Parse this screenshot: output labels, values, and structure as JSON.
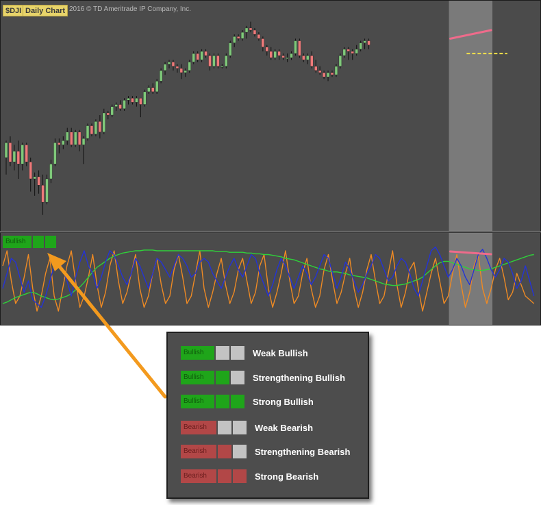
{
  "header": {
    "symbol": "$DJI",
    "chart_type": "Daily Chart",
    "copyright": "2016 © TD Ameritrade IP Company, Inc."
  },
  "indicator": {
    "state_label": "Bullish",
    "blocks_filled": 3
  },
  "legend": {
    "items": [
      {
        "tag": "Bullish",
        "filled": 1,
        "kind": "bull",
        "text": "Weak Bullish"
      },
      {
        "tag": "Bullish",
        "filled": 2,
        "kind": "bull",
        "text": "Strengthening Bullish"
      },
      {
        "tag": "Bullish",
        "filled": 3,
        "kind": "bull",
        "text": "Strong Bullish"
      },
      {
        "tag": "Bearish",
        "filled": 1,
        "kind": "bear",
        "text": "Weak Bearish"
      },
      {
        "tag": "Bearish",
        "filled": 2,
        "kind": "bear",
        "text": "Strengthening Bearish"
      },
      {
        "tag": "Bearish",
        "filled": 3,
        "kind": "bear",
        "text": "Strong Bearish"
      }
    ]
  },
  "colors": {
    "panel_bg": "#4b4b4b",
    "up_candle": "#7fc97a",
    "down_candle": "#ee7a7a",
    "wick": "#111111",
    "bull": "#1fa51a",
    "bear": "#b24747",
    "inactive": "#c3c3c3",
    "highlight": "#8a8a8a",
    "divergence_line": "#ef6b8b",
    "support_line": "#f2e14a",
    "line_blue": "#2433d6",
    "line_orange": "#ee8a24",
    "line_green": "#2fd13a",
    "arrow": "#f39a1e"
  },
  "chart_data": [
    {
      "type": "candlestick",
      "title": "$DJI Daily Chart",
      "ylim": [
        0,
        100
      ],
      "highlight_range": [
        109,
        119
      ],
      "divergence_line": [
        [
          109,
          86
        ],
        [
          119,
          90
        ]
      ],
      "support_line": [
        [
          113,
          79
        ],
        [
          123,
          79
        ]
      ],
      "candles": [
        {
          "o": 30,
          "h": 38,
          "l": 22,
          "c": 37
        },
        {
          "o": 37,
          "h": 40,
          "l": 26,
          "c": 28
        },
        {
          "o": 28,
          "h": 36,
          "l": 24,
          "c": 33
        },
        {
          "o": 33,
          "h": 38,
          "l": 20,
          "c": 27
        },
        {
          "o": 27,
          "h": 37,
          "l": 24,
          "c": 36
        },
        {
          "o": 36,
          "h": 37,
          "l": 26,
          "c": 28
        },
        {
          "o": 28,
          "h": 30,
          "l": 14,
          "c": 20
        },
        {
          "o": 20,
          "h": 23,
          "l": 12,
          "c": 21
        },
        {
          "o": 21,
          "h": 24,
          "l": 13,
          "c": 17
        },
        {
          "o": 17,
          "h": 22,
          "l": 3,
          "c": 9
        },
        {
          "o": 9,
          "h": 22,
          "l": 8,
          "c": 20
        },
        {
          "o": 20,
          "h": 29,
          "l": 18,
          "c": 27
        },
        {
          "o": 27,
          "h": 39,
          "l": 26,
          "c": 37
        },
        {
          "o": 37,
          "h": 39,
          "l": 32,
          "c": 36
        },
        {
          "o": 36,
          "h": 40,
          "l": 34,
          "c": 38
        },
        {
          "o": 38,
          "h": 44,
          "l": 36,
          "c": 42
        },
        {
          "o": 42,
          "h": 44,
          "l": 35,
          "c": 36
        },
        {
          "o": 36,
          "h": 43,
          "l": 35,
          "c": 42
        },
        {
          "o": 42,
          "h": 43,
          "l": 33,
          "c": 36
        },
        {
          "o": 36,
          "h": 40,
          "l": 27,
          "c": 39
        },
        {
          "o": 39,
          "h": 46,
          "l": 38,
          "c": 45
        },
        {
          "o": 45,
          "h": 46,
          "l": 40,
          "c": 41
        },
        {
          "o": 41,
          "h": 48,
          "l": 40,
          "c": 47
        },
        {
          "o": 47,
          "h": 50,
          "l": 39,
          "c": 42
        },
        {
          "o": 42,
          "h": 53,
          "l": 41,
          "c": 51
        },
        {
          "o": 51,
          "h": 52,
          "l": 48,
          "c": 50
        },
        {
          "o": 50,
          "h": 55,
          "l": 49,
          "c": 54
        },
        {
          "o": 54,
          "h": 56,
          "l": 52,
          "c": 55
        },
        {
          "o": 55,
          "h": 57,
          "l": 52,
          "c": 53
        },
        {
          "o": 53,
          "h": 58,
          "l": 52,
          "c": 57
        },
        {
          "o": 57,
          "h": 59,
          "l": 55,
          "c": 58
        },
        {
          "o": 58,
          "h": 59,
          "l": 55,
          "c": 56
        },
        {
          "o": 56,
          "h": 59,
          "l": 54,
          "c": 58
        },
        {
          "o": 58,
          "h": 58,
          "l": 49,
          "c": 55
        },
        {
          "o": 55,
          "h": 62,
          "l": 54,
          "c": 61
        },
        {
          "o": 61,
          "h": 64,
          "l": 60,
          "c": 63
        },
        {
          "o": 63,
          "h": 65,
          "l": 60,
          "c": 61
        },
        {
          "o": 61,
          "h": 67,
          "l": 60,
          "c": 66
        },
        {
          "o": 66,
          "h": 72,
          "l": 65,
          "c": 71
        },
        {
          "o": 71,
          "h": 75,
          "l": 69,
          "c": 74
        },
        {
          "o": 74,
          "h": 76,
          "l": 72,
          "c": 75
        },
        {
          "o": 75,
          "h": 76,
          "l": 71,
          "c": 73
        },
        {
          "o": 73,
          "h": 74,
          "l": 70,
          "c": 72
        },
        {
          "o": 72,
          "h": 74,
          "l": 67,
          "c": 70
        },
        {
          "o": 70,
          "h": 72,
          "l": 68,
          "c": 71
        },
        {
          "o": 71,
          "h": 76,
          "l": 70,
          "c": 75
        },
        {
          "o": 75,
          "h": 80,
          "l": 74,
          "c": 79
        },
        {
          "o": 79,
          "h": 80,
          "l": 75,
          "c": 76
        },
        {
          "o": 76,
          "h": 81,
          "l": 75,
          "c": 80
        },
        {
          "o": 80,
          "h": 81,
          "l": 77,
          "c": 78
        },
        {
          "o": 78,
          "h": 79,
          "l": 71,
          "c": 73
        },
        {
          "o": 73,
          "h": 79,
          "l": 72,
          "c": 78
        },
        {
          "o": 78,
          "h": 79,
          "l": 72,
          "c": 73
        },
        {
          "o": 73,
          "h": 74,
          "l": 72,
          "c": 73
        },
        {
          "o": 73,
          "h": 79,
          "l": 72,
          "c": 78
        },
        {
          "o": 78,
          "h": 85,
          "l": 77,
          "c": 84
        },
        {
          "o": 84,
          "h": 88,
          "l": 82,
          "c": 87
        },
        {
          "o": 87,
          "h": 88,
          "l": 85,
          "c": 86
        },
        {
          "o": 86,
          "h": 90,
          "l": 85,
          "c": 89
        },
        {
          "o": 89,
          "h": 92,
          "l": 86,
          "c": 91
        },
        {
          "o": 91,
          "h": 94,
          "l": 89,
          "c": 90
        },
        {
          "o": 90,
          "h": 91,
          "l": 87,
          "c": 88
        },
        {
          "o": 88,
          "h": 89,
          "l": 85,
          "c": 86
        },
        {
          "o": 86,
          "h": 87,
          "l": 80,
          "c": 82
        },
        {
          "o": 82,
          "h": 83,
          "l": 78,
          "c": 80
        },
        {
          "o": 80,
          "h": 82,
          "l": 76,
          "c": 77
        },
        {
          "o": 77,
          "h": 81,
          "l": 76,
          "c": 80
        },
        {
          "o": 80,
          "h": 81,
          "l": 76,
          "c": 78
        },
        {
          "o": 78,
          "h": 79,
          "l": 76,
          "c": 77
        },
        {
          "o": 77,
          "h": 79,
          "l": 75,
          "c": 77
        },
        {
          "o": 77,
          "h": 80,
          "l": 76,
          "c": 79
        },
        {
          "o": 79,
          "h": 86,
          "l": 78,
          "c": 85
        },
        {
          "o": 85,
          "h": 86,
          "l": 77,
          "c": 78
        },
        {
          "o": 78,
          "h": 79,
          "l": 75,
          "c": 76
        },
        {
          "o": 76,
          "h": 79,
          "l": 74,
          "c": 78
        },
        {
          "o": 78,
          "h": 80,
          "l": 72,
          "c": 73
        },
        {
          "o": 73,
          "h": 76,
          "l": 70,
          "c": 71
        },
        {
          "o": 71,
          "h": 73,
          "l": 69,
          "c": 70
        },
        {
          "o": 70,
          "h": 71,
          "l": 67,
          "c": 68
        },
        {
          "o": 68,
          "h": 71,
          "l": 66,
          "c": 70
        },
        {
          "o": 70,
          "h": 71,
          "l": 68,
          "c": 69
        },
        {
          "o": 69,
          "h": 74,
          "l": 68,
          "c": 73
        },
        {
          "o": 73,
          "h": 79,
          "l": 72,
          "c": 78
        },
        {
          "o": 78,
          "h": 82,
          "l": 77,
          "c": 81
        },
        {
          "o": 81,
          "h": 82,
          "l": 76,
          "c": 80
        },
        {
          "o": 80,
          "h": 81,
          "l": 76,
          "c": 79
        },
        {
          "o": 79,
          "h": 83,
          "l": 78,
          "c": 81
        },
        {
          "o": 81,
          "h": 85,
          "l": 80,
          "c": 84
        },
        {
          "o": 84,
          "h": 86,
          "l": 81,
          "c": 85
        },
        {
          "o": 85,
          "h": 86,
          "l": 81,
          "c": 83
        }
      ]
    },
    {
      "type": "line",
      "xlim": [
        0,
        125
      ],
      "ylim": [
        0,
        100
      ],
      "series": [
        {
          "color": "blue",
          "values": [
            40,
            60,
            80,
            75,
            55,
            35,
            50,
            25,
            20,
            15,
            30,
            50,
            70,
            80,
            65,
            50,
            30,
            55,
            75,
            90,
            70,
            60,
            40,
            55,
            75,
            90,
            85,
            70,
            55,
            45,
            60,
            80,
            70,
            55,
            40,
            60,
            80,
            75,
            65,
            55,
            70,
            85,
            80,
            70,
            55,
            60,
            75,
            80,
            75,
            60,
            50,
            40,
            55,
            70,
            80,
            65,
            55,
            70,
            85,
            80,
            60,
            45,
            30,
            45,
            65,
            80,
            70,
            55,
            40,
            55,
            70,
            60,
            45,
            55,
            70,
            85,
            80,
            60,
            40,
            55,
            75,
            65,
            50,
            35,
            45,
            60,
            70,
            85,
            80,
            65,
            50,
            55,
            70,
            80,
            75,
            60,
            40,
            30,
            50,
            70,
            90,
            95,
            85,
            70,
            55,
            65,
            80,
            70,
            55,
            45,
            65,
            85,
            92,
            80,
            65,
            55,
            65,
            80,
            75,
            60,
            40,
            50,
            70,
            50,
            30
          ]
        },
        {
          "color": "orange",
          "values": [
            70,
            90,
            50,
            20,
            30,
            55,
            85,
            40,
            10,
            30,
            60,
            80,
            30,
            10,
            40,
            70,
            90,
            50,
            15,
            30,
            55,
            85,
            45,
            15,
            35,
            70,
            90,
            50,
            20,
            35,
            60,
            85,
            40,
            15,
            30,
            60,
            80,
            45,
            20,
            30,
            65,
            85,
            55,
            20,
            30,
            60,
            90,
            40,
            15,
            35,
            60,
            80,
            45,
            20,
            35,
            65,
            80,
            50,
            20,
            35,
            70,
            85,
            40,
            15,
            35,
            60,
            90,
            50,
            20,
            30,
            60,
            80,
            40,
            15,
            30,
            65,
            85,
            50,
            20,
            35,
            60,
            80,
            40,
            15,
            35,
            65,
            85,
            50,
            20,
            30,
            60,
            90,
            45,
            15,
            35,
            65,
            75,
            40,
            10,
            35,
            60,
            80,
            50,
            20,
            30,
            60,
            85,
            45,
            15,
            35,
            70,
            85,
            40,
            20,
            40,
            65,
            80,
            55,
            25,
            35,
            60,
            45,
            30,
            25,
            20
          ]
        },
        {
          "color": "green",
          "values": [
            20,
            22,
            25,
            28,
            30,
            32,
            34,
            35,
            33,
            30,
            28,
            26,
            25,
            26,
            28,
            30,
            33,
            38,
            42,
            48,
            55,
            62,
            68,
            72,
            76,
            80,
            83,
            85,
            87,
            88,
            89,
            90,
            90,
            91,
            91,
            91,
            90,
            90,
            90,
            90,
            90,
            90,
            90,
            90,
            90,
            90,
            90,
            90,
            90,
            90,
            89,
            89,
            89,
            88,
            88,
            88,
            88,
            87,
            87,
            86,
            86,
            85,
            85,
            84,
            83,
            82,
            80,
            79,
            78,
            76,
            74,
            72,
            70,
            68,
            66,
            65,
            63,
            62,
            62,
            61,
            60,
            58,
            57,
            56,
            55,
            54,
            52,
            50,
            48,
            46,
            45,
            44,
            44,
            45,
            46,
            48,
            50,
            52,
            55,
            60,
            65,
            70,
            74,
            76,
            76,
            74,
            72,
            70,
            68,
            66,
            65,
            64,
            64,
            65,
            66,
            68,
            70,
            72,
            74,
            76,
            78,
            80,
            82,
            84,
            85
          ]
        }
      ]
    }
  ]
}
